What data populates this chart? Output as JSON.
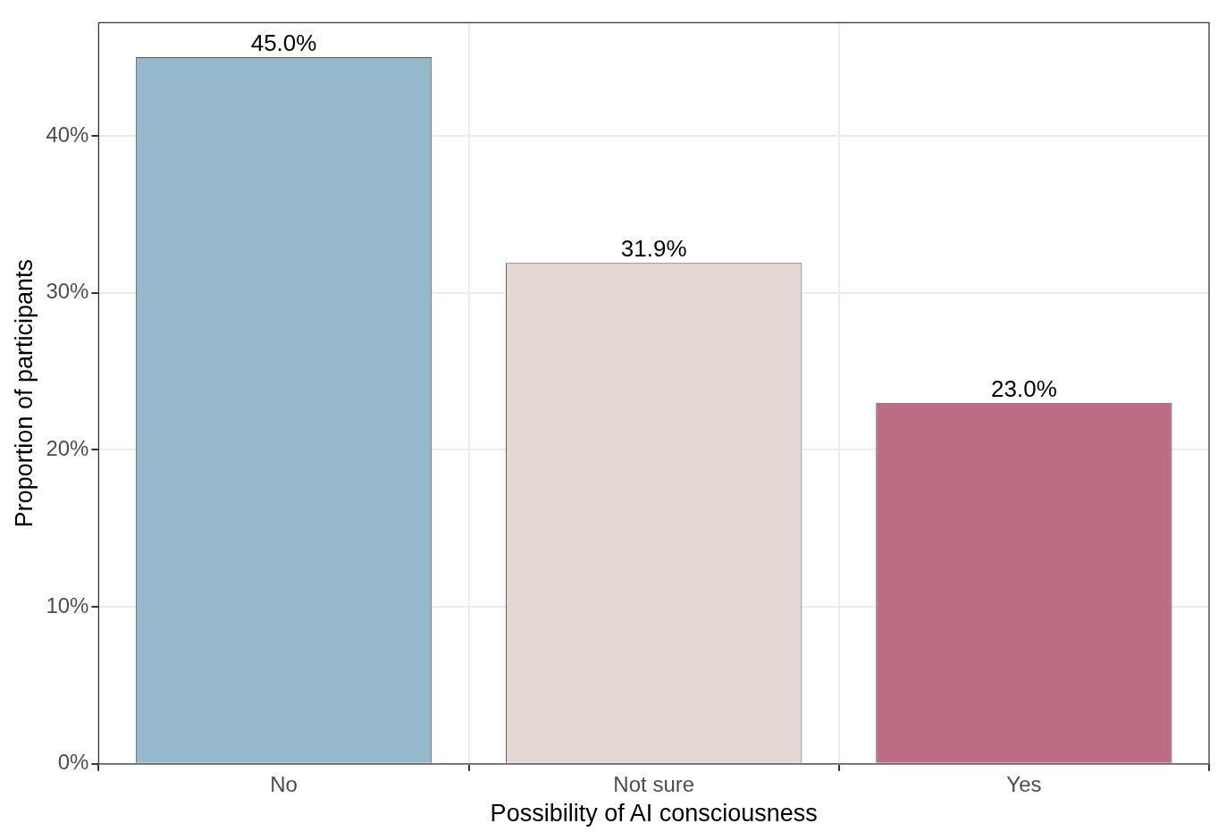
{
  "chart_data": {
    "type": "bar",
    "xlabel": "Possibility of AI consciousness",
    "ylabel": "Proportion of participants",
    "categories": [
      "No",
      "Not sure",
      "Yes"
    ],
    "values": [
      45.0,
      31.9,
      23.0
    ],
    "colors": [
      "#96b8cc",
      "#e5d7d4",
      "#bc6d84"
    ],
    "value_labels": [
      "45.0%",
      "31.9%",
      "23.0%"
    ],
    "ylim": [
      0,
      47.2
    ],
    "yticks": [
      {
        "value": 0,
        "label": "0%"
      },
      {
        "value": 10,
        "label": "10%"
      },
      {
        "value": 20,
        "label": "20%"
      },
      {
        "value": 30,
        "label": "30%"
      },
      {
        "value": 40,
        "label": "40%"
      }
    ],
    "grid": true,
    "legend": false
  }
}
